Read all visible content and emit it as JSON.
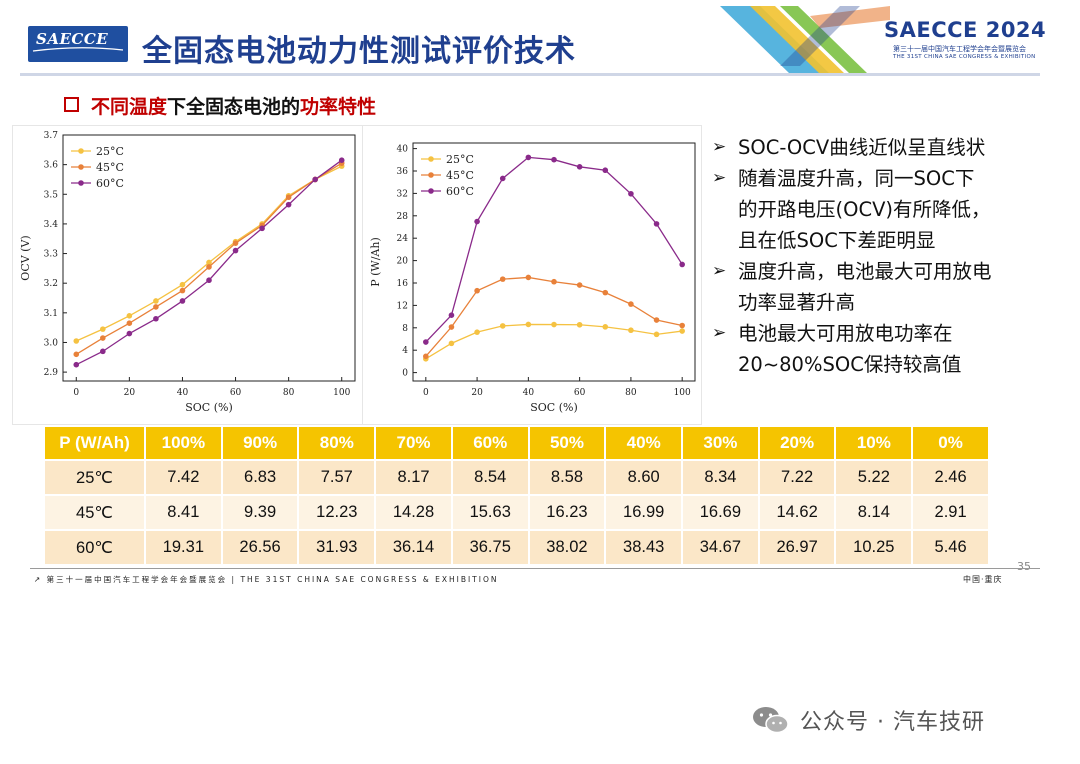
{
  "header": {
    "logo_text": "SAECCE",
    "title": "全固态电池动力性测试评价技术",
    "brand": "SAECCE 2024",
    "brand_sub1": "第三十一届中国汽车工程学会年会暨展览会",
    "brand_sub2": "THE 31ST CHINA SAE CONGRESS & EXHIBITION"
  },
  "subheading": {
    "part1": "不同温度",
    "part2": "下全固态电池的",
    "part3": "功率特性"
  },
  "colors": {
    "c25": "#f5c242",
    "c45": "#e8813a",
    "c60": "#8a2a8a",
    "table_header": "#f5c400",
    "title_blue": "#1f3f8f",
    "accent_red": "#c00000"
  },
  "chart_data": [
    {
      "type": "line",
      "xlabel": "SOC (%)",
      "ylabel": "OCV (V)",
      "xlim": [
        -5,
        105
      ],
      "ylim": [
        2.87,
        3.7
      ],
      "xticks": [
        0,
        20,
        40,
        60,
        80,
        100
      ],
      "yticks": [
        2.9,
        3.0,
        3.1,
        3.2,
        3.3,
        3.4,
        3.5,
        3.6,
        3.7
      ],
      "legend": "top-left",
      "x": [
        0,
        10,
        20,
        30,
        40,
        50,
        60,
        70,
        80,
        90,
        100
      ],
      "series": [
        {
          "name": "25°C",
          "values": [
            3.005,
            3.045,
            3.09,
            3.14,
            3.195,
            3.27,
            3.34,
            3.4,
            3.495,
            3.55,
            3.595
          ]
        },
        {
          "name": "45°C",
          "values": [
            2.96,
            3.015,
            3.065,
            3.12,
            3.175,
            3.255,
            3.335,
            3.395,
            3.49,
            3.55,
            3.605
          ]
        },
        {
          "name": "60°C",
          "values": [
            2.925,
            2.97,
            3.03,
            3.08,
            3.14,
            3.21,
            3.31,
            3.385,
            3.465,
            3.55,
            3.615
          ]
        }
      ]
    },
    {
      "type": "line",
      "xlabel": "SOC (%)",
      "ylabel": "P (W/Ah)",
      "xlim": [
        -5,
        105
      ],
      "ylim": [
        -1.5,
        41
      ],
      "xticks": [
        0,
        20,
        40,
        60,
        80,
        100
      ],
      "yticks": [
        0,
        4,
        8,
        12,
        16,
        20,
        24,
        28,
        32,
        36,
        40
      ],
      "legend": "top-left",
      "x": [
        0,
        10,
        20,
        30,
        40,
        50,
        60,
        70,
        80,
        90,
        100
      ],
      "series": [
        {
          "name": "25°C",
          "values": [
            2.46,
            5.22,
            7.22,
            8.34,
            8.6,
            8.58,
            8.54,
            8.17,
            7.57,
            6.83,
            7.42
          ]
        },
        {
          "name": "45°C",
          "values": [
            2.91,
            8.14,
            14.62,
            16.69,
            16.99,
            16.23,
            15.63,
            14.28,
            12.23,
            9.39,
            8.41
          ]
        },
        {
          "name": "60°C",
          "values": [
            5.46,
            10.25,
            26.97,
            34.67,
            38.43,
            38.02,
            36.75,
            36.14,
            31.93,
            26.56,
            19.31
          ]
        }
      ]
    }
  ],
  "bullets": [
    {
      "lines": [
        "SOC-OCV曲线近似呈直线状"
      ]
    },
    {
      "lines": [
        "随着温度升高，同一SOC下",
        "的开路电压(OCV)有所降低，",
        "且在低SOC下差距明显"
      ]
    },
    {
      "lines": [
        "温度升高，电池最大可用放电",
        "功率显著升高"
      ]
    },
    {
      "lines": [
        "电池最大可用放电功率在",
        "20~80%SOC保持较高值"
      ]
    }
  ],
  "bullet_marker": "➢",
  "table": {
    "headers": [
      "P (W/Ah)",
      "100%",
      "90%",
      "80%",
      "70%",
      "60%",
      "50%",
      "40%",
      "30%",
      "20%",
      "10%",
      "0%"
    ],
    "rows": [
      [
        "25℃",
        "7.42",
        "6.83",
        "7.57",
        "8.17",
        "8.54",
        "8.58",
        "8.60",
        "8.34",
        "7.22",
        "5.22",
        "2.46"
      ],
      [
        "45℃",
        "8.41",
        "9.39",
        "12.23",
        "14.28",
        "15.63",
        "16.23",
        "16.99",
        "16.69",
        "14.62",
        "8.14",
        "2.91"
      ],
      [
        "60℃",
        "19.31",
        "26.56",
        "31.93",
        "36.14",
        "36.75",
        "38.02",
        "38.43",
        "34.67",
        "26.97",
        "10.25",
        "5.46"
      ]
    ]
  },
  "footer": {
    "left": "第三十一届中国汽车工程学会年会暨展览会 | THE 31ST CHINA SAE CONGRESS & EXHIBITION",
    "right": "中国·重庆",
    "page": "35"
  },
  "watermark": "公众号 · 汽车技研"
}
